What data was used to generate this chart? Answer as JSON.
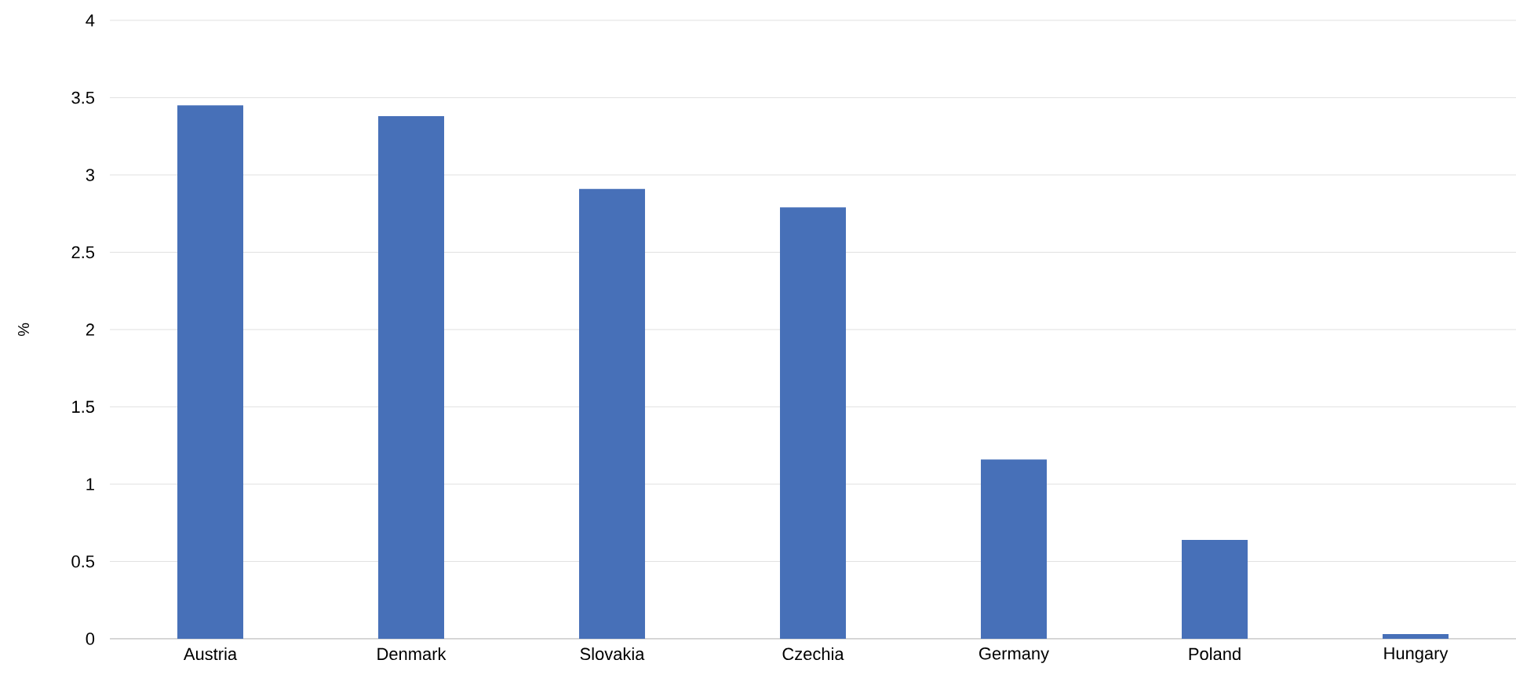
{
  "chart_data": {
    "type": "bar",
    "ylabel": "%",
    "categories": [
      "Austria",
      "Denmark",
      "Slovakia",
      "Czechia",
      "Germany",
      "Poland",
      "Hungary"
    ],
    "values": [
      3.45,
      3.38,
      2.91,
      2.79,
      1.16,
      0.64,
      0.03
    ],
    "color": "#4770b8",
    "ylim": [
      0,
      4
    ],
    "yticks": [
      0,
      0.5,
      1,
      1.5,
      2,
      2.5,
      3,
      3.5,
      4
    ],
    "grid": "y"
  }
}
